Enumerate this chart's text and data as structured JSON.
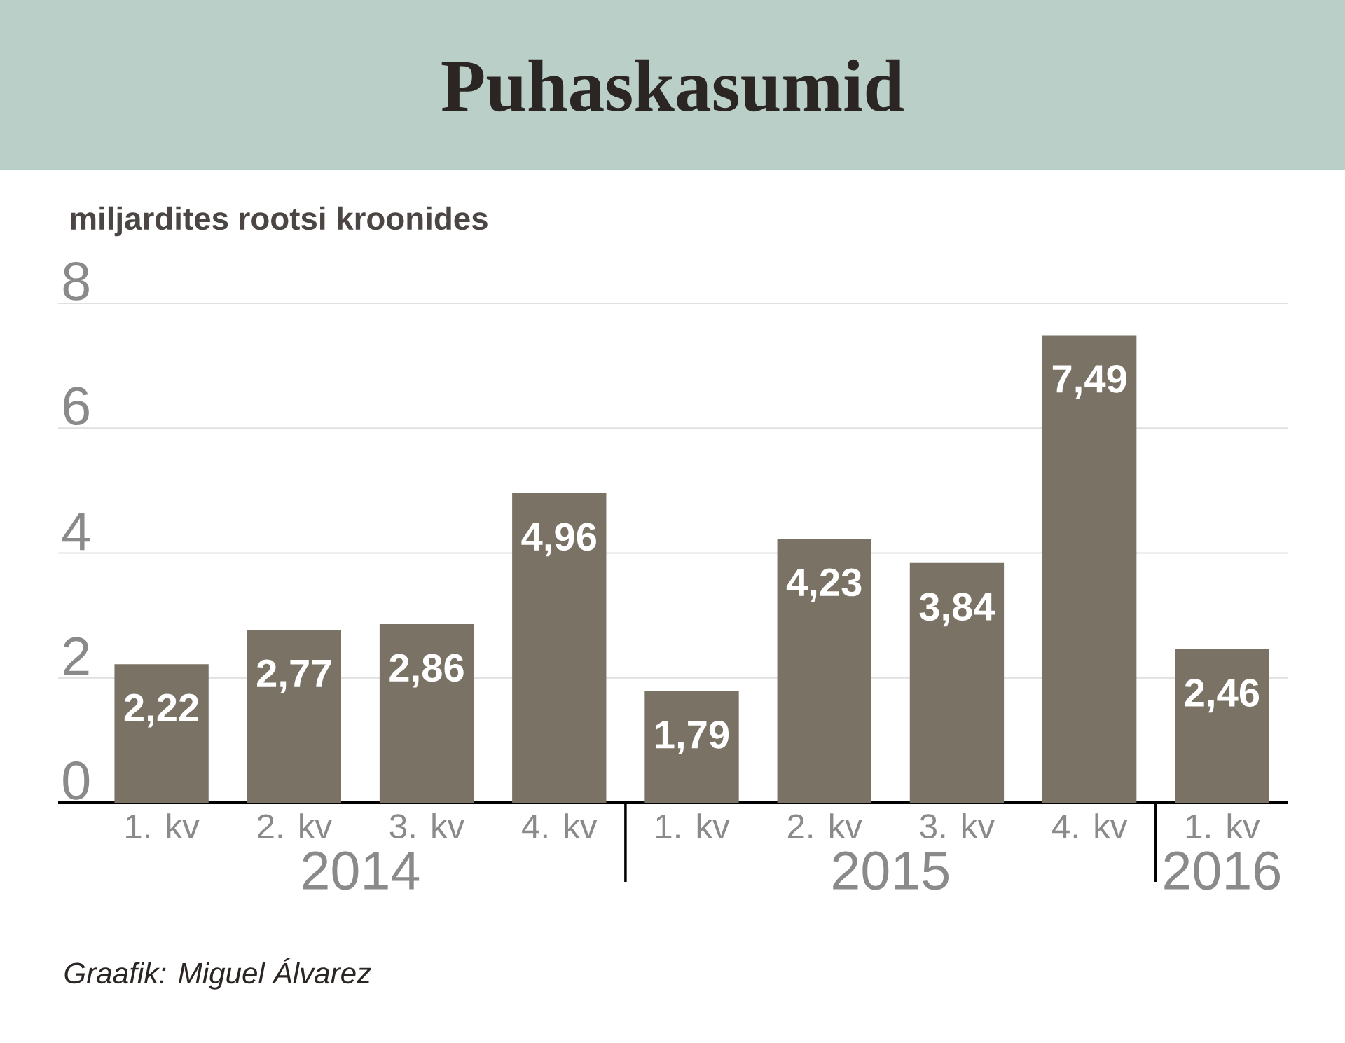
{
  "chart_data": {
    "type": "bar",
    "title": "Puhaskasumid",
    "ylabel": "miljardites rootsi kroonides",
    "categories": [
      "1. kv",
      "2. kv",
      "3. kv",
      "4. kv",
      "1. kv",
      "2. kv",
      "3. kv",
      "4. kv",
      "1. kv"
    ],
    "values": [
      2.22,
      2.77,
      2.86,
      4.96,
      1.79,
      4.23,
      3.84,
      7.49,
      2.46
    ],
    "value_labels": [
      "2,22",
      "2,77",
      "2,86",
      "4,96",
      "1,79",
      "4,23",
      "3,84",
      "7,49",
      "2,46"
    ],
    "color": "#7a7265",
    "ylim": [
      0,
      8
    ],
    "yticks": [
      0,
      2,
      4,
      6,
      8
    ],
    "grid": "y",
    "annotations": [
      "2014",
      "2015",
      "2016",
      "Graafik: Miguel Álvarez"
    ]
  }
}
